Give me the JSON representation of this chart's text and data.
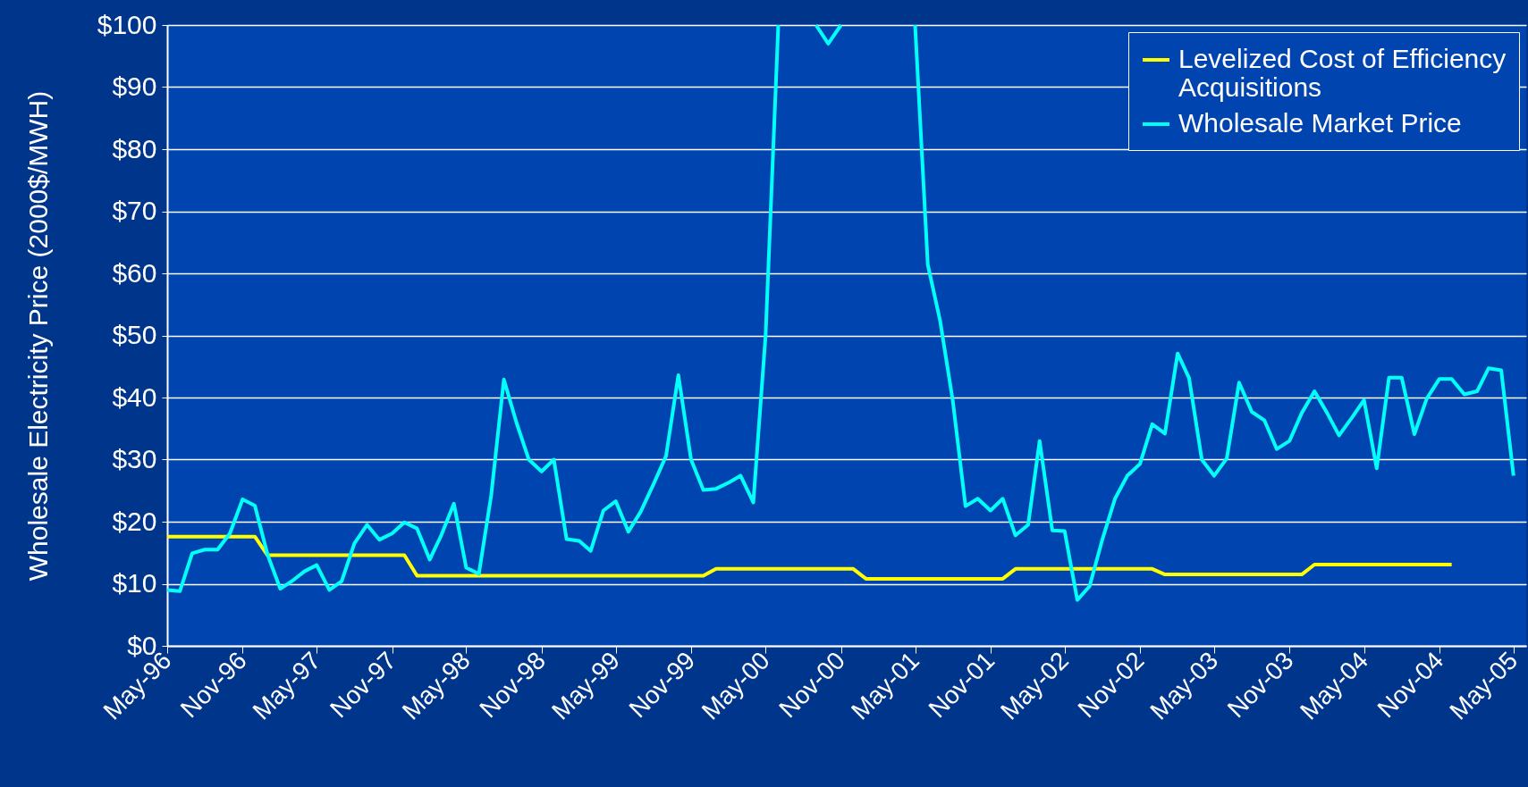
{
  "chart_data": {
    "type": "line",
    "ylabel": "Wholesale Electricity Price (2000$/MWH)",
    "x": [
      "1996-05",
      "1996-06",
      "1996-07",
      "1996-08",
      "1996-09",
      "1996-10",
      "1996-11",
      "1996-12",
      "1997-01",
      "1997-02",
      "1997-03",
      "1997-04",
      "1997-05",
      "1997-06",
      "1997-07",
      "1997-08",
      "1997-09",
      "1997-10",
      "1997-11",
      "1997-12",
      "1998-01",
      "1998-02",
      "1998-03",
      "1998-04",
      "1998-05",
      "1998-06",
      "1998-07",
      "1998-08",
      "1998-09",
      "1998-10",
      "1998-11",
      "1998-12",
      "1999-01",
      "1999-02",
      "1999-03",
      "1999-04",
      "1999-05",
      "1999-06",
      "1999-07",
      "1999-08",
      "1999-09",
      "1999-10",
      "1999-11",
      "1999-12",
      "2000-01",
      "2000-02",
      "2000-03",
      "2000-04",
      "2000-05",
      "2000-06",
      "2000-07",
      "2000-08",
      "2000-09",
      "2000-10",
      "2000-11",
      "2000-12",
      "2001-01",
      "2001-02",
      "2001-03",
      "2001-04",
      "2001-05",
      "2001-06",
      "2001-07",
      "2001-08",
      "2001-09",
      "2001-10",
      "2001-11",
      "2001-12",
      "2002-01",
      "2002-02",
      "2002-03",
      "2002-04",
      "2002-05",
      "2002-06",
      "2002-07",
      "2002-08",
      "2002-09",
      "2002-10",
      "2002-11",
      "2002-12",
      "2003-01",
      "2003-02",
      "2003-03",
      "2003-04",
      "2003-05",
      "2003-06",
      "2003-07",
      "2003-08",
      "2003-09",
      "2003-10",
      "2003-11",
      "2003-12",
      "2004-01",
      "2004-02",
      "2004-03",
      "2004-04",
      "2004-05",
      "2004-06",
      "2004-07",
      "2004-08",
      "2004-09",
      "2004-10",
      "2004-11",
      "2004-12",
      "2005-01",
      "2005-02",
      "2005-03",
      "2005-04",
      "2005-05"
    ],
    "series": [
      {
        "name": "Levelized Cost of Efficiency Acquisitions",
        "color": "#ffff00",
        "values": [
          17.6,
          17.6,
          17.6,
          17.6,
          17.6,
          17.6,
          17.6,
          17.6,
          14.6,
          14.6,
          14.6,
          14.6,
          14.6,
          14.6,
          14.6,
          14.6,
          14.6,
          14.6,
          14.6,
          14.6,
          11.3,
          11.3,
          11.3,
          11.3,
          11.3,
          11.3,
          11.3,
          11.3,
          11.3,
          11.3,
          11.3,
          11.3,
          11.3,
          11.3,
          11.3,
          11.3,
          11.3,
          11.3,
          11.3,
          11.3,
          11.3,
          11.3,
          11.3,
          11.3,
          12.4,
          12.4,
          12.4,
          12.4,
          12.4,
          12.4,
          12.4,
          12.4,
          12.4,
          12.4,
          12.4,
          12.4,
          10.8,
          10.8,
          10.8,
          10.8,
          10.8,
          10.8,
          10.8,
          10.8,
          10.8,
          10.8,
          10.8,
          10.8,
          12.4,
          12.4,
          12.4,
          12.4,
          12.4,
          12.4,
          12.4,
          12.4,
          12.4,
          12.4,
          12.4,
          12.4,
          11.5,
          11.5,
          11.5,
          11.5,
          11.5,
          11.5,
          11.5,
          11.5,
          11.5,
          11.5,
          11.5,
          11.5,
          13.1,
          13.1,
          13.1,
          13.1,
          13.1,
          13.1,
          13.1,
          13.1,
          13.1,
          13.1,
          13.1,
          13.1,
          null,
          null,
          null,
          null,
          null
        ]
      },
      {
        "name": "Wholesale Market Price",
        "color": "#00ffff",
        "values": [
          9.0,
          8.8,
          14.9,
          15.5,
          15.5,
          18.1,
          23.6,
          22.6,
          14.7,
          9.2,
          10.4,
          12.0,
          13.0,
          9.0,
          10.4,
          16.5,
          19.5,
          17.1,
          18.1,
          19.9,
          18.9,
          13.9,
          17.8,
          22.9,
          12.6,
          11.6,
          24.2,
          42.9,
          35.9,
          30.0,
          28.1,
          30.0,
          17.2,
          16.9,
          15.3,
          21.8,
          23.3,
          18.4,
          21.6,
          26.0,
          30.6,
          43.6,
          30.0,
          25.1,
          25.3,
          26.3,
          27.4,
          23.1,
          50.0,
          100,
          null,
          null,
          100,
          97,
          100,
          null,
          null,
          null,
          null,
          null,
          100,
          61.4,
          52.4,
          39.5,
          22.5,
          23.7,
          21.8,
          23.7,
          17.8,
          19.5,
          33.0,
          18.6,
          18.5,
          7.4,
          9.6,
          17.1,
          23.7,
          27.4,
          29.3,
          35.7,
          34.2,
          47.1,
          43.1,
          30.0,
          27.4,
          30.2,
          42.4,
          37.7,
          36.3,
          31.7,
          33.0,
          37.5,
          41.0,
          37.5,
          33.9,
          36.7,
          39.6,
          28.6,
          43.2,
          43.2,
          34.1,
          39.8,
          43.0,
          43.0,
          40.5,
          41.0,
          44.7,
          44.4,
          27.4
        ]
      }
    ],
    "xlim": [
      "1996-05",
      "2005-06"
    ],
    "xticks": [
      {
        "value": "1996-05",
        "label": "May-96"
      },
      {
        "value": "1996-11",
        "label": "Nov-96"
      },
      {
        "value": "1997-05",
        "label": "May-97"
      },
      {
        "value": "1997-11",
        "label": "Nov-97"
      },
      {
        "value": "1998-05",
        "label": "May-98"
      },
      {
        "value": "1998-11",
        "label": "Nov-98"
      },
      {
        "value": "1999-05",
        "label": "May-99"
      },
      {
        "value": "1999-11",
        "label": "Nov-99"
      },
      {
        "value": "2000-05",
        "label": "May-00"
      },
      {
        "value": "2000-11",
        "label": "Nov-00"
      },
      {
        "value": "2001-05",
        "label": "May-01"
      },
      {
        "value": "2001-11",
        "label": "Nov-01"
      },
      {
        "value": "2002-05",
        "label": "May-02"
      },
      {
        "value": "2002-11",
        "label": "Nov-02"
      },
      {
        "value": "2003-05",
        "label": "May-03"
      },
      {
        "value": "2003-11",
        "label": "Nov-03"
      },
      {
        "value": "2004-05",
        "label": "May-04"
      },
      {
        "value": "2004-11",
        "label": "Nov-04"
      },
      {
        "value": "2005-05",
        "label": "May-05"
      }
    ],
    "ylim": [
      0,
      100
    ],
    "yticks": [
      {
        "value": 0,
        "label": "$0"
      },
      {
        "value": 10,
        "label": "$10"
      },
      {
        "value": 20,
        "label": "$20"
      },
      {
        "value": 30,
        "label": "$30"
      },
      {
        "value": 40,
        "label": "$40"
      },
      {
        "value": 50,
        "label": "$50"
      },
      {
        "value": 60,
        "label": "$60"
      },
      {
        "value": 70,
        "label": "$70"
      },
      {
        "value": 80,
        "label": "$80"
      },
      {
        "value": 90,
        "label": "$90"
      },
      {
        "value": 100,
        "label": "$100"
      }
    ],
    "grid": "y",
    "legend": "top right",
    "line_style": "solid",
    "marker": "none"
  }
}
